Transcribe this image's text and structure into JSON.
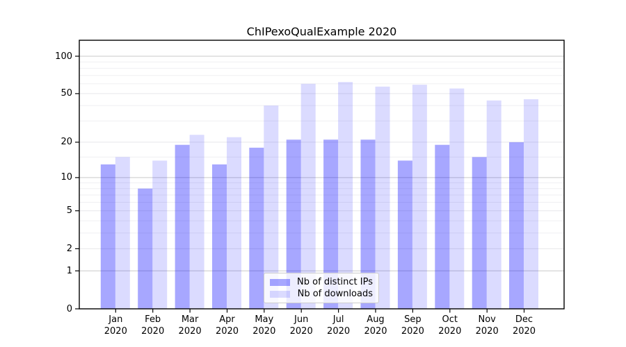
{
  "chart_data": {
    "type": "bar",
    "title": "ChIPexoQualExample 2020",
    "categories": [
      "Jan",
      "Feb",
      "Mar",
      "Apr",
      "May",
      "Jun",
      "Jul",
      "Aug",
      "Sep",
      "Oct",
      "Nov",
      "Dec"
    ],
    "category_year": "2020",
    "series": [
      {
        "name": "Nb of distinct IPs",
        "color": "rgba(0,0,255,0.345)",
        "values": [
          13,
          8,
          19,
          13,
          18,
          21,
          21,
          21,
          14,
          19,
          15,
          20
        ]
      },
      {
        "name": "Nb of downloads",
        "color": "rgba(0,0,255,0.14)",
        "values": [
          15,
          14,
          23,
          22,
          40,
          60,
          62,
          57,
          59,
          55,
          44,
          45
        ]
      }
    ],
    "yscale": "log1p",
    "ylim": [
      0,
      134
    ],
    "y_ticks_labeled": [
      0,
      1,
      2,
      5,
      10,
      20,
      50,
      100
    ],
    "y_gridlines_strong": [
      1,
      10,
      100
    ],
    "y_gridlines_light": [
      2,
      5,
      20,
      50
    ],
    "y_gridlines_minor": [
      3,
      4,
      6,
      7,
      8,
      9,
      15,
      30,
      40,
      60,
      70,
      80,
      90
    ],
    "grid": true,
    "legend_position": "lower center",
    "colors": {
      "axis": "#000000",
      "text": "#000000",
      "grid_strong": "#c9c9c9",
      "grid_light": "#e7e7ea",
      "grid_minor": "#efeff2",
      "legend_border": "#cccccc",
      "legend_bg": "rgba(255,255,255,0.8)"
    }
  }
}
